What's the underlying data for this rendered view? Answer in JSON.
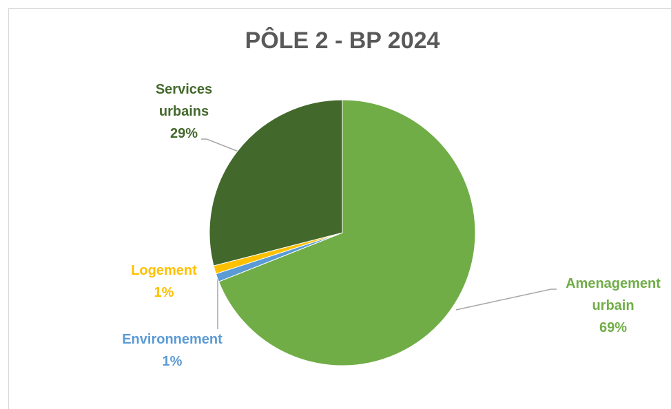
{
  "chart_data": {
    "type": "pie",
    "title": "PÔLE 2 - BP 2024",
    "categories": [
      "Amenagement urbain",
      "Environnement",
      "Logement",
      "Services urbains"
    ],
    "values": [
      69,
      1,
      1,
      29
    ],
    "value_labels": [
      "69%",
      "1%",
      "1%",
      "29%"
    ],
    "colors": [
      "#70ad47",
      "#5b9bd5",
      "#ffc000",
      "#43682b"
    ],
    "label_colors": [
      "#70ad47",
      "#5b9bd5",
      "#ffc000",
      "#43682b"
    ]
  }
}
